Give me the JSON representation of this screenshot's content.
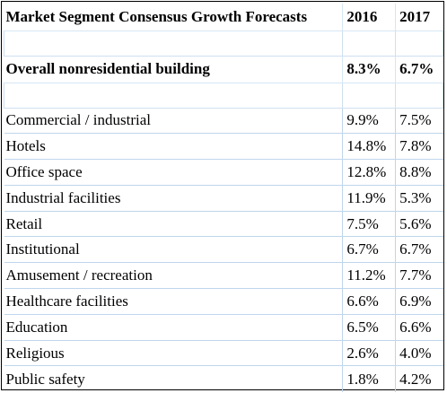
{
  "table": {
    "header": {
      "title": "Market Segment Consensus Growth Forecasts",
      "year_a": "2016",
      "year_b": "2017"
    },
    "overall": {
      "label": "Overall nonresidential building",
      "year_a": "8.3%",
      "year_b": "6.7%"
    },
    "rows": [
      {
        "label": "Commercial / industrial",
        "year_a": "9.9%",
        "year_b": "7.5%"
      },
      {
        "label": "Hotels",
        "year_a": "14.8%",
        "year_b": "7.8%"
      },
      {
        "label": "Office space",
        "year_a": "12.8%",
        "year_b": "8.8%"
      },
      {
        "label": "Industrial facilities",
        "year_a": "11.9%",
        "year_b": "5.3%"
      },
      {
        "label": "Retail",
        "year_a": "7.5%",
        "year_b": "5.6%"
      },
      {
        "label": "Institutional",
        "year_a": "6.7%",
        "year_b": "6.7%"
      },
      {
        "label": "Amusement / recreation",
        "year_a": "11.2%",
        "year_b": "7.7%"
      },
      {
        "label": "Healthcare facilities",
        "year_a": "6.6%",
        "year_b": "6.9%"
      },
      {
        "label": "Education",
        "year_a": "6.5%",
        "year_b": "6.6%"
      },
      {
        "label": "Religious",
        "year_a": "2.6%",
        "year_b": "4.0%"
      },
      {
        "label": "Public safety",
        "year_a": "1.8%",
        "year_b": "4.2%"
      }
    ]
  }
}
